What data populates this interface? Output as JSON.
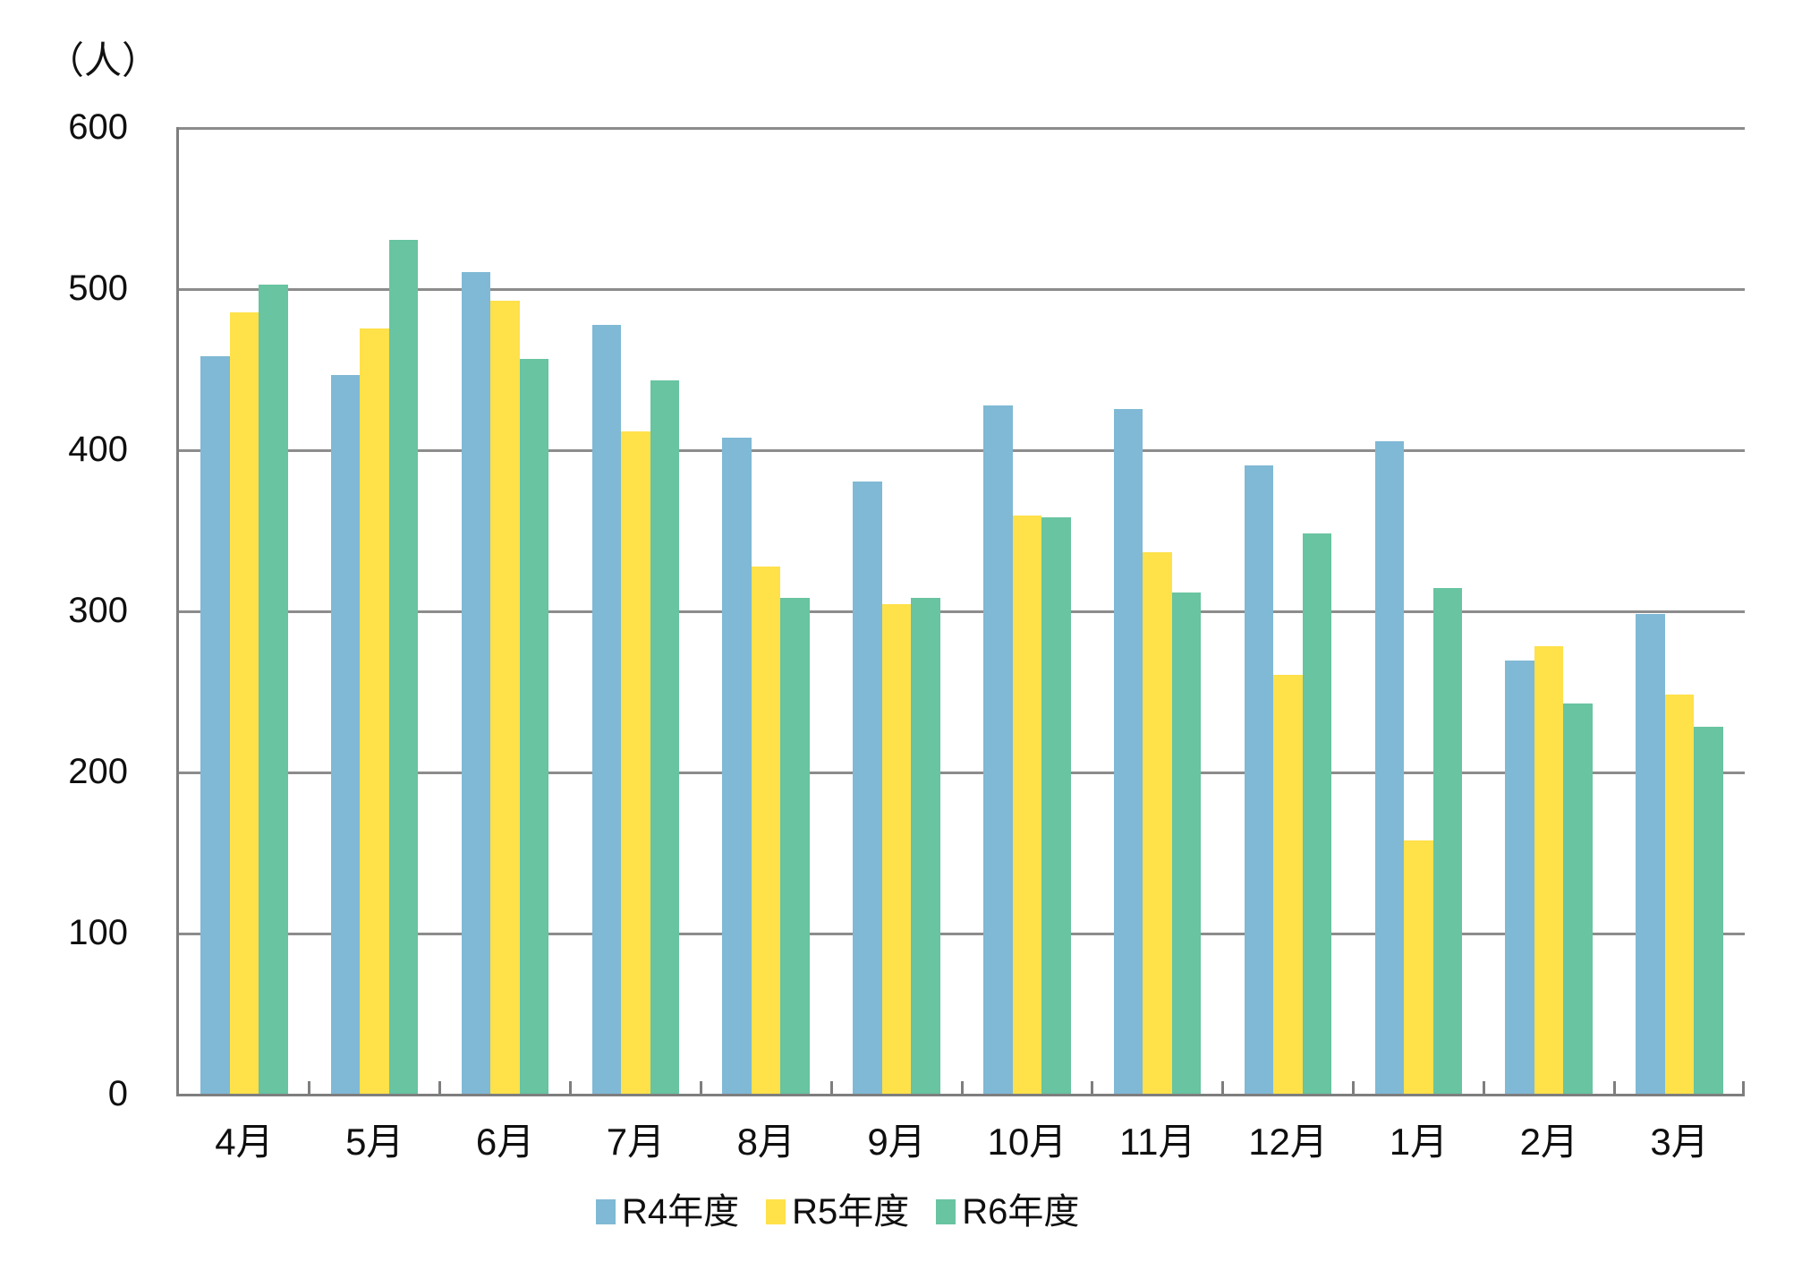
{
  "chart_data": {
    "type": "bar",
    "title": "",
    "unit_label": "（人）",
    "categories": [
      "4月",
      "5月",
      "6月",
      "7月",
      "8月",
      "9月",
      "10月",
      "11月",
      "12月",
      "1月",
      "2月",
      "3月"
    ],
    "series": [
      {
        "name": "R4年度",
        "color": "#7FB9D5",
        "values": [
          458,
          446,
          510,
          477,
          407,
          380,
          427,
          425,
          390,
          405,
          269,
          298
        ]
      },
      {
        "name": "R5年度",
        "color": "#FFE14A",
        "values": [
          485,
          475,
          492,
          411,
          327,
          304,
          359,
          336,
          260,
          157,
          278,
          248
        ]
      },
      {
        "name": "R6年度",
        "color": "#68C4A1",
        "values": [
          502,
          530,
          456,
          443,
          308,
          308,
          358,
          311,
          348,
          314,
          242,
          228
        ]
      }
    ],
    "xlabel": "",
    "ylabel": "（人）",
    "ylim": [
      0,
      600
    ],
    "ytick_interval": 100,
    "yticks": [
      "600",
      "500",
      "400",
      "300",
      "200",
      "100",
      "0"
    ],
    "grid": true,
    "legend_position": "bottom"
  }
}
